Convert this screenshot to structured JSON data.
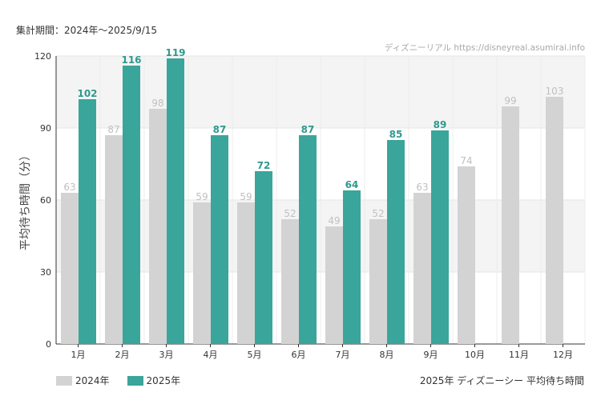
{
  "header": {
    "period": "集計期間：2024年～2025/9/15"
  },
  "footer": {
    "caption": "2025年 ディズニーシー 平均待ち時間"
  },
  "colors": {
    "series_2024": "#d3d3d3",
    "series_2025": "#3aa59a",
    "label_2024": "#c0c0c0",
    "label_2025": "#2e9a8f",
    "band": "#f4f4f4"
  },
  "chart_data": {
    "type": "bar",
    "title": "",
    "watermark": "ディズニーリアル https://disneyreal.asumirai.info",
    "xlabel": "",
    "ylabel": "平均待ち時間（分）",
    "ylim": [
      0,
      120
    ],
    "yticks": [
      0,
      30,
      60,
      90,
      120
    ],
    "grid": true,
    "legend_position": "bottom-left",
    "categories": [
      "1月",
      "2月",
      "3月",
      "4月",
      "5月",
      "6月",
      "7月",
      "8月",
      "9月",
      "10月",
      "11月",
      "12月"
    ],
    "series": [
      {
        "name": "2024年",
        "values": [
          63,
          87,
          98,
          59,
          59,
          52,
          49,
          52,
          63,
          74,
          99,
          103
        ]
      },
      {
        "name": "2025年",
        "values": [
          102,
          116,
          119,
          87,
          72,
          87,
          64,
          85,
          89,
          null,
          null,
          null
        ]
      }
    ]
  }
}
